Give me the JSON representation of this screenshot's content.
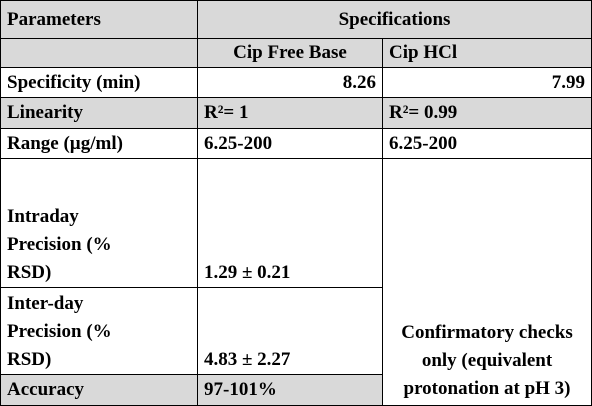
{
  "table": {
    "header": [
      "Parameters",
      "Specifications"
    ],
    "subheader": [
      "Cip Free Base",
      "Cip HCl"
    ],
    "rows": [
      [
        "Specificity (min)",
        8.26,
        7.99
      ],
      [
        "Linearity",
        "R²= 1",
        "R²= 0.99"
      ],
      [
        "Range (µg/ml)",
        "6.25-200",
        "6.25-200"
      ],
      [
        "Intraday Precision (% RSD)",
        "1.29 ± 0.21",
        "Confirmatory checks only (equivalent protonation at pH 3)"
      ],
      [
        "Inter-day Precision (% RSD)",
        "4.83 ± 2.27"
      ],
      [
        "Accuracy",
        "97-101%"
      ]
    ]
  }
}
